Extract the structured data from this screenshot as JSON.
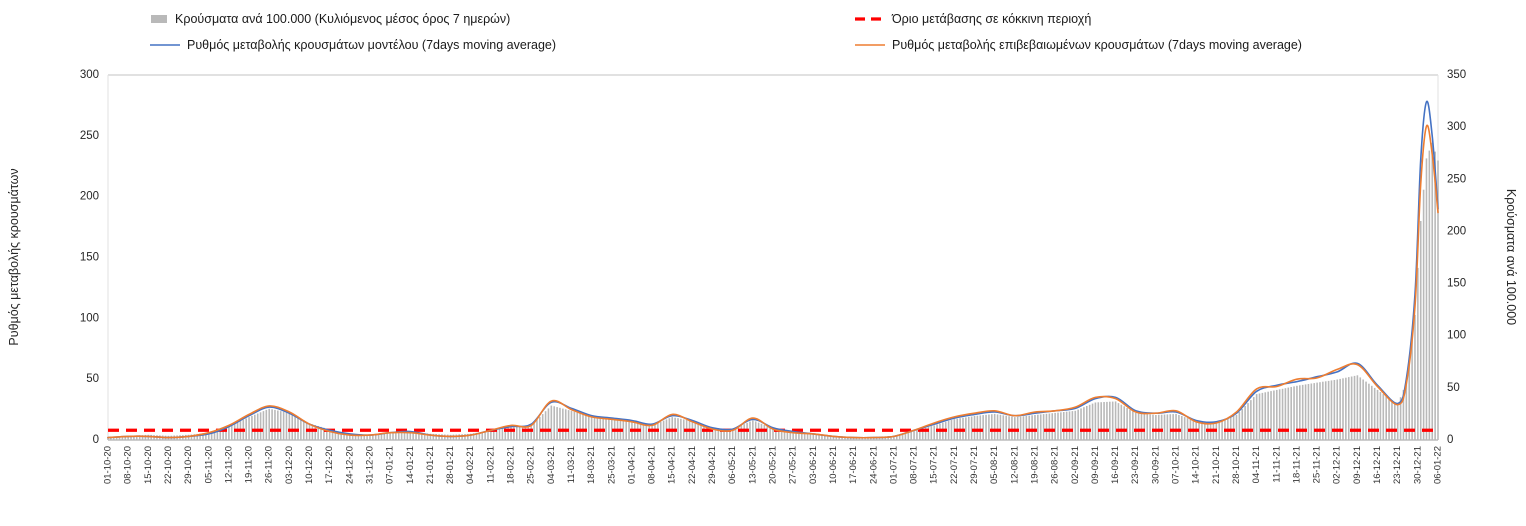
{
  "chart_data": {
    "type": "bar+line",
    "title": "",
    "x_day_max": 462,
    "x_tick_step_days": 7,
    "x_dates": [
      "01-10-20",
      "08-10-20",
      "15-10-20",
      "22-10-20",
      "29-10-20",
      "05-11-20",
      "12-11-20",
      "19-11-20",
      "26-11-20",
      "03-12-20",
      "10-12-20",
      "17-12-20",
      "24-12-20",
      "31-12-20",
      "07-01-21",
      "14-01-21",
      "21-01-21",
      "28-01-21",
      "04-02-21",
      "11-02-21",
      "18-02-21",
      "25-02-21",
      "04-03-21",
      "11-03-21",
      "18-03-21",
      "25-03-21",
      "01-04-21",
      "08-04-21",
      "15-04-21",
      "22-04-21",
      "29-04-21",
      "06-05-21",
      "13-05-21",
      "20-05-21",
      "27-05-21",
      "03-06-21",
      "10-06-21",
      "17-06-21",
      "24-06-21",
      "01-07-21",
      "08-07-21",
      "15-07-21",
      "22-07-21",
      "29-07-21",
      "05-08-21",
      "12-08-21",
      "19-08-21",
      "26-08-21",
      "02-09-21",
      "09-09-21",
      "16-09-21",
      "23-09-21",
      "30-09-21",
      "07-10-21",
      "14-10-21",
      "21-10-21",
      "28-10-21",
      "04-11-21",
      "11-11-21",
      "18-11-21",
      "25-11-21",
      "02-12-21",
      "09-12-21",
      "16-12-21",
      "23-12-21",
      "30-12-21",
      "06-01-22"
    ],
    "left_axis": {
      "label": "Ρυθμός μεταβολής κρουσμάτων",
      "min": 0,
      "max": 300,
      "step": 50
    },
    "right_axis": {
      "label": "Κρούσματα ανά 100.000",
      "min": 0,
      "max": 350,
      "step": 50
    },
    "grid": "off",
    "legend_position": "top",
    "series": [
      {
        "name": "Κρούσματα ανά 100.000 (Κυλιόμενος μέσος όρος 7 ημερών)",
        "kind": "bar",
        "axis": "right",
        "color": "#b9b9b9",
        "points": [
          [
            0,
            3
          ],
          [
            7,
            4
          ],
          [
            14,
            5
          ],
          [
            21,
            4
          ],
          [
            28,
            5
          ],
          [
            35,
            7
          ],
          [
            42,
            13
          ],
          [
            49,
            22
          ],
          [
            56,
            30
          ],
          [
            63,
            26
          ],
          [
            70,
            16
          ],
          [
            77,
            10
          ],
          [
            84,
            6
          ],
          [
            91,
            5
          ],
          [
            98,
            7
          ],
          [
            105,
            8
          ],
          [
            112,
            6
          ],
          [
            119,
            5
          ],
          [
            126,
            6
          ],
          [
            133,
            9
          ],
          [
            140,
            13
          ],
          [
            147,
            14
          ],
          [
            154,
            33
          ],
          [
            161,
            28
          ],
          [
            168,
            22
          ],
          [
            175,
            20
          ],
          [
            182,
            18
          ],
          [
            189,
            14
          ],
          [
            196,
            22
          ],
          [
            203,
            18
          ],
          [
            210,
            12
          ],
          [
            217,
            10
          ],
          [
            224,
            19
          ],
          [
            231,
            11
          ],
          [
            238,
            8
          ],
          [
            245,
            6
          ],
          [
            252,
            4
          ],
          [
            259,
            3
          ],
          [
            266,
            3
          ],
          [
            273,
            4
          ],
          [
            280,
            9
          ],
          [
            287,
            14
          ],
          [
            294,
            20
          ],
          [
            301,
            23
          ],
          [
            308,
            25
          ],
          [
            315,
            22
          ],
          [
            322,
            24
          ],
          [
            329,
            26
          ],
          [
            336,
            28
          ],
          [
            343,
            36
          ],
          [
            350,
            37
          ],
          [
            357,
            26
          ],
          [
            364,
            24
          ],
          [
            371,
            25
          ],
          [
            378,
            18
          ],
          [
            385,
            17
          ],
          [
            392,
            24
          ],
          [
            399,
            44
          ],
          [
            406,
            48
          ],
          [
            413,
            52
          ],
          [
            420,
            55
          ],
          [
            427,
            58
          ],
          [
            434,
            62
          ],
          [
            441,
            48
          ],
          [
            448,
            34
          ],
          [
            451,
            55
          ],
          [
            454,
            120
          ],
          [
            456,
            210
          ],
          [
            458,
            270
          ],
          [
            460,
            285
          ],
          [
            462,
            268
          ]
        ]
      },
      {
        "name": "Όριο μετάβασης σε κόκκινη περιοχή",
        "kind": "threshold",
        "axis": "left",
        "color": "#ff0000",
        "value": 8
      },
      {
        "name": "Ρυθμός μεταβολής κρουσμάτων μοντέλου (7days moving average)",
        "kind": "line",
        "axis": "left",
        "color": "#4472c4",
        "points": [
          [
            0,
            2
          ],
          [
            7,
            3
          ],
          [
            14,
            3
          ],
          [
            21,
            2
          ],
          [
            28,
            3
          ],
          [
            35,
            5
          ],
          [
            42,
            11
          ],
          [
            49,
            20
          ],
          [
            56,
            27
          ],
          [
            63,
            22
          ],
          [
            70,
            13
          ],
          [
            77,
            8
          ],
          [
            84,
            5
          ],
          [
            91,
            4
          ],
          [
            98,
            6
          ],
          [
            105,
            7
          ],
          [
            112,
            4
          ],
          [
            119,
            3
          ],
          [
            126,
            4
          ],
          [
            133,
            8
          ],
          [
            140,
            11
          ],
          [
            147,
            13
          ],
          [
            154,
            31
          ],
          [
            161,
            26
          ],
          [
            168,
            20
          ],
          [
            175,
            18
          ],
          [
            182,
            16
          ],
          [
            189,
            13
          ],
          [
            196,
            20
          ],
          [
            203,
            16
          ],
          [
            210,
            10
          ],
          [
            217,
            9
          ],
          [
            224,
            17
          ],
          [
            231,
            10
          ],
          [
            238,
            7
          ],
          [
            245,
            5
          ],
          [
            252,
            3
          ],
          [
            259,
            2
          ],
          [
            266,
            2
          ],
          [
            273,
            3
          ],
          [
            280,
            8
          ],
          [
            287,
            13
          ],
          [
            294,
            18
          ],
          [
            301,
            21
          ],
          [
            308,
            23
          ],
          [
            315,
            20
          ],
          [
            322,
            22
          ],
          [
            329,
            24
          ],
          [
            336,
            26
          ],
          [
            343,
            34
          ],
          [
            350,
            35
          ],
          [
            357,
            24
          ],
          [
            364,
            22
          ],
          [
            371,
            23
          ],
          [
            378,
            16
          ],
          [
            385,
            15
          ],
          [
            392,
            22
          ],
          [
            399,
            40
          ],
          [
            406,
            45
          ],
          [
            413,
            48
          ],
          [
            420,
            52
          ],
          [
            427,
            56
          ],
          [
            434,
            63
          ],
          [
            441,
            45
          ],
          [
            448,
            30
          ],
          [
            451,
            50
          ],
          [
            454,
            120
          ],
          [
            456,
            230
          ],
          [
            458,
            278
          ],
          [
            460,
            250
          ],
          [
            462,
            190
          ]
        ]
      },
      {
        "name": "Ρυθμός μεταβολής επιβεβαιωμένων κρουσμάτων (7days moving average)",
        "kind": "line",
        "axis": "left",
        "color": "#ed7d31",
        "points": [
          [
            0,
            2
          ],
          [
            7,
            3
          ],
          [
            14,
            3
          ],
          [
            21,
            2
          ],
          [
            28,
            3
          ],
          [
            35,
            6
          ],
          [
            42,
            12
          ],
          [
            49,
            21
          ],
          [
            56,
            28
          ],
          [
            63,
            23
          ],
          [
            70,
            13
          ],
          [
            77,
            7
          ],
          [
            84,
            4
          ],
          [
            91,
            4
          ],
          [
            98,
            6
          ],
          [
            105,
            6
          ],
          [
            112,
            4
          ],
          [
            119,
            3
          ],
          [
            126,
            4
          ],
          [
            133,
            8
          ],
          [
            140,
            12
          ],
          [
            147,
            12
          ],
          [
            154,
            32
          ],
          [
            161,
            25
          ],
          [
            168,
            19
          ],
          [
            175,
            17
          ],
          [
            182,
            15
          ],
          [
            189,
            12
          ],
          [
            196,
            21
          ],
          [
            203,
            15
          ],
          [
            210,
            9
          ],
          [
            217,
            8
          ],
          [
            224,
            18
          ],
          [
            231,
            9
          ],
          [
            238,
            6
          ],
          [
            245,
            5
          ],
          [
            252,
            3
          ],
          [
            259,
            2
          ],
          [
            266,
            2
          ],
          [
            273,
            3
          ],
          [
            280,
            8
          ],
          [
            287,
            14
          ],
          [
            294,
            19
          ],
          [
            301,
            22
          ],
          [
            308,
            24
          ],
          [
            315,
            20
          ],
          [
            322,
            23
          ],
          [
            329,
            24
          ],
          [
            336,
            27
          ],
          [
            343,
            35
          ],
          [
            350,
            34
          ],
          [
            357,
            23
          ],
          [
            364,
            22
          ],
          [
            371,
            24
          ],
          [
            378,
            15
          ],
          [
            385,
            14
          ],
          [
            392,
            23
          ],
          [
            399,
            42
          ],
          [
            406,
            44
          ],
          [
            413,
            50
          ],
          [
            420,
            51
          ],
          [
            427,
            58
          ],
          [
            434,
            62
          ],
          [
            441,
            44
          ],
          [
            448,
            29
          ],
          [
            451,
            46
          ],
          [
            454,
            110
          ],
          [
            456,
            210
          ],
          [
            458,
            258
          ],
          [
            460,
            235
          ],
          [
            462,
            187
          ]
        ]
      }
    ]
  }
}
